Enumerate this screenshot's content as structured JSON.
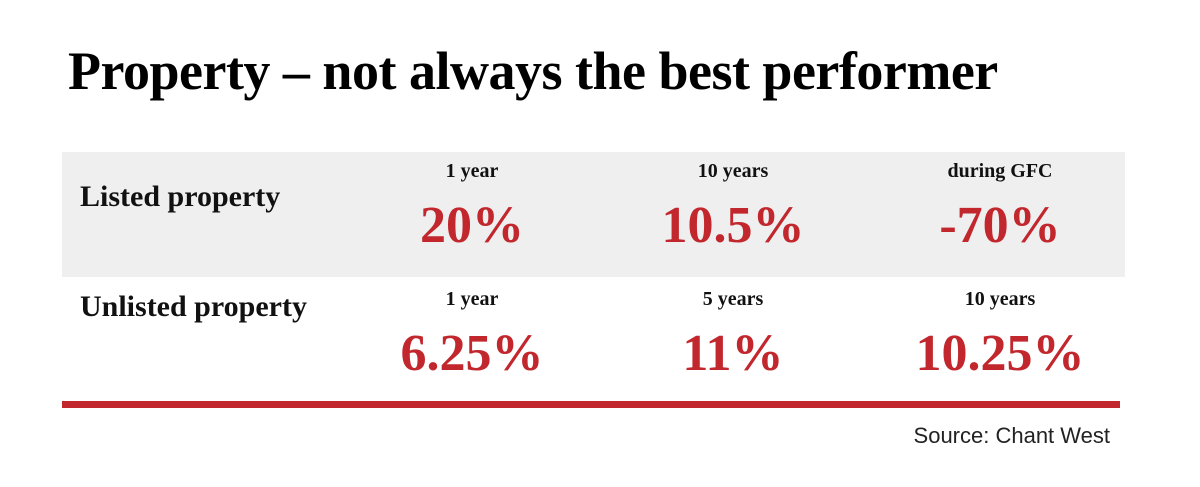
{
  "title": "Property – not always the best performer",
  "table": {
    "rows": [
      {
        "label": "Listed property",
        "cells": [
          {
            "period": "1 year",
            "value": "20%"
          },
          {
            "period": "10 years",
            "value": "10.5%"
          },
          {
            "period": "during GFC",
            "value": "-70%"
          }
        ]
      },
      {
        "label": "Unlisted property",
        "cells": [
          {
            "period": "1 year",
            "value": "6.25%"
          },
          {
            "period": "5 years",
            "value": "11%"
          },
          {
            "period": "10 years",
            "value": "10.25%"
          }
        ]
      }
    ]
  },
  "source": "Source: Chant West"
}
